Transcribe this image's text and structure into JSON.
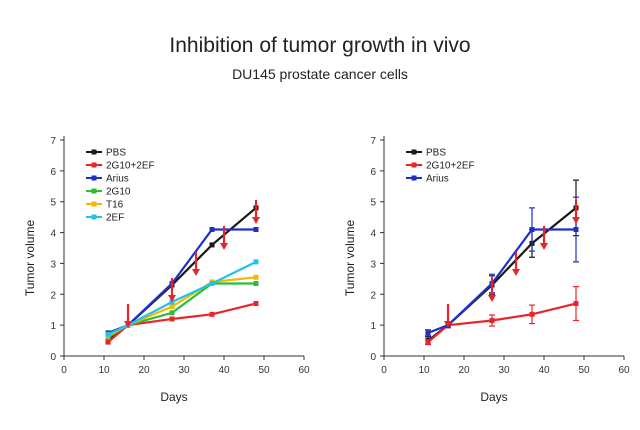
{
  "title": "Inhibition of tumor growth in vivo",
  "subtitle": "DU145 prostate cancer cells",
  "chart_data": [
    {
      "type": "line",
      "xlabel": "Days",
      "ylabel": "Tumor volume",
      "xlim": [
        0,
        60
      ],
      "ylim": [
        0,
        7
      ],
      "xticks": [
        "0",
        "10",
        "20",
        "30",
        "40",
        "50",
        "60"
      ],
      "yticks": [
        "0",
        "1",
        "2",
        "3",
        "4",
        "5",
        "6",
        "7"
      ],
      "grid": false,
      "legend_position": "top-left",
      "treatment_arrow_days": [
        16,
        27,
        33,
        40,
        48
      ],
      "series": [
        {
          "name": "PBS",
          "color": "#1a1a1a",
          "x": [
            11,
            16,
            27,
            37,
            48
          ],
          "y": [
            0.5,
            1.0,
            2.3,
            3.6,
            4.8
          ]
        },
        {
          "name": "2G10+2EF",
          "color": "#e8262a",
          "x": [
            11,
            16,
            27,
            37,
            48
          ],
          "y": [
            0.45,
            1.0,
            1.2,
            1.35,
            1.7
          ]
        },
        {
          "name": "Arius",
          "color": "#1f2fc8",
          "x": [
            11,
            16,
            27,
            37,
            48
          ],
          "y": [
            0.75,
            1.0,
            2.35,
            4.1,
            4.1
          ]
        },
        {
          "name": "2G10",
          "color": "#2dbb3a",
          "x": [
            11,
            16,
            27,
            37,
            48
          ],
          "y": [
            0.6,
            1.0,
            1.4,
            2.35,
            2.35
          ]
        },
        {
          "name": "T16",
          "color": "#f5b800",
          "x": [
            11,
            16,
            27,
            37,
            48
          ],
          "y": [
            0.65,
            1.0,
            1.6,
            2.4,
            2.55
          ]
        },
        {
          "name": "2EF",
          "color": "#22c3e8",
          "x": [
            11,
            16,
            27,
            37,
            48
          ],
          "y": [
            0.7,
            1.0,
            1.75,
            2.35,
            3.05
          ]
        }
      ]
    },
    {
      "type": "line",
      "xlabel": "Days",
      "ylabel": "Tumor volume",
      "xlim": [
        0,
        60
      ],
      "ylim": [
        0,
        7
      ],
      "xticks": [
        "0",
        "10",
        "20",
        "30",
        "40",
        "50",
        "60"
      ],
      "yticks": [
        "0",
        "1",
        "2",
        "3",
        "4",
        "5",
        "6",
        "7"
      ],
      "grid": false,
      "legend_position": "top-left",
      "treatment_arrow_days": [
        16,
        27,
        33,
        40,
        48
      ],
      "series": [
        {
          "name": "PBS",
          "color": "#1a1a1a",
          "x": [
            11,
            16,
            27,
            37,
            48
          ],
          "y": [
            0.5,
            1.0,
            2.3,
            3.65,
            4.8
          ],
          "err": [
            0.12,
            0.08,
            0.3,
            0.45,
            0.9
          ]
        },
        {
          "name": "2G10+2EF",
          "color": "#e8262a",
          "x": [
            11,
            16,
            27,
            37,
            48
          ],
          "y": [
            0.45,
            1.0,
            1.15,
            1.35,
            1.7
          ],
          "err": [
            0.08,
            0.08,
            0.18,
            0.3,
            0.55
          ]
        },
        {
          "name": "Arius",
          "color": "#1f2fc8",
          "x": [
            11,
            16,
            27,
            37,
            48
          ],
          "y": [
            0.75,
            1.0,
            2.35,
            4.1,
            4.1
          ],
          "err": [
            0.1,
            0.08,
            0.3,
            0.7,
            1.05
          ]
        }
      ]
    }
  ]
}
